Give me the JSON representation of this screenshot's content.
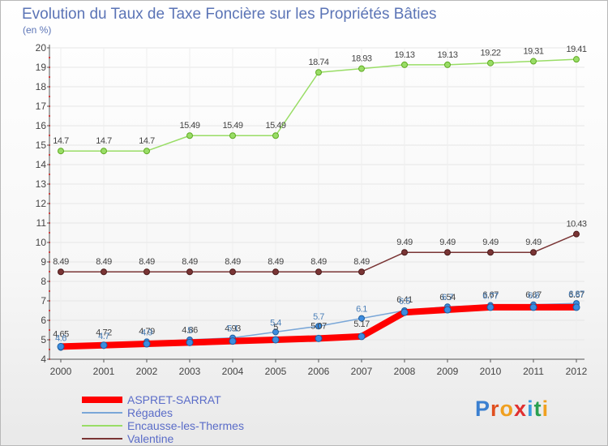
{
  "title": "Evolution du Taux de Taxe Foncière sur les Propriétés Bâties",
  "unit": "(en %)",
  "logo": [
    "P",
    "r",
    "o",
    "x",
    "i",
    "t",
    "i"
  ],
  "logo_colors": [
    "#3a7fd0",
    "#e05020",
    "#f0a020",
    "#e03030",
    "#3a9de0",
    "#2aa050",
    "#f0a020"
  ],
  "chart_data": {
    "type": "line",
    "title": "Evolution du Taux de Taxe Foncière sur les Propriétés Bâties",
    "ylabel": "(en %)",
    "x": [
      "2000",
      "2001",
      "2002",
      "2003",
      "2004",
      "2005",
      "2006",
      "2007",
      "2008",
      "2009",
      "2010",
      "2011",
      "2012"
    ],
    "ylim": [
      4,
      20
    ],
    "yticks": [
      4,
      5,
      6,
      7,
      8,
      9,
      10,
      11,
      12,
      13,
      14,
      15,
      16,
      17,
      18,
      19,
      20
    ],
    "series": [
      {
        "name": "ASPRET-SARRAT",
        "color": "#ff0000",
        "width": "thick",
        "values": [
          4.65,
          4.72,
          4.79,
          4.86,
          4.93,
          5.0,
          5.07,
          5.17,
          6.41,
          6.54,
          6.67,
          6.67,
          6.67
        ],
        "labels": [
          "4.65",
          "4.72",
          "4.79",
          "4.86",
          "4.93",
          "5",
          "5.07",
          "5.17",
          "6.41",
          "6.54",
          "6.67",
          "6.67",
          "6.67"
        ]
      },
      {
        "name": "Régades",
        "color": "#7aa7d8",
        "width": "thin",
        "values": [
          4.6,
          4.7,
          4.9,
          5.0,
          5.1,
          5.4,
          5.7,
          6.1,
          6.5,
          6.7,
          6.77,
          6.8,
          6.87
        ],
        "labels": [
          "4.6",
          "4.7",
          "4.9",
          "5",
          "5.1",
          "5.4",
          "5.7",
          "6.1",
          "6.5",
          "6.7",
          "6.77",
          "6.8",
          "6.87"
        ]
      },
      {
        "name": "Encausse-les-Thermes",
        "color": "#99dd66",
        "width": "thin",
        "values": [
          14.7,
          14.7,
          14.7,
          15.49,
          15.49,
          15.49,
          18.74,
          18.93,
          19.13,
          19.13,
          19.22,
          19.31,
          19.41
        ],
        "labels": [
          "14.7",
          "14.7",
          "14.7",
          "15.49",
          "15.49",
          "15.49",
          "18.74",
          "18.93",
          "19.13",
          "19.13",
          "19.22",
          "19.31",
          "19.41"
        ]
      },
      {
        "name": "Valentine",
        "color": "#7a3535",
        "width": "thin",
        "values": [
          8.49,
          8.49,
          8.49,
          8.49,
          8.49,
          8.49,
          8.49,
          8.49,
          9.49,
          9.49,
          9.49,
          9.49,
          10.43
        ],
        "labels": [
          "8.49",
          "8.49",
          "8.49",
          "8.49",
          "8.49",
          "8.49",
          "8.49",
          "8.49",
          "9.49",
          "9.49",
          "9.49",
          "9.49",
          "10.43"
        ]
      }
    ],
    "legend": [
      "ASPRET-SARRAT",
      "Régades",
      "Encausse-les-Thermes",
      "Valentine"
    ]
  }
}
